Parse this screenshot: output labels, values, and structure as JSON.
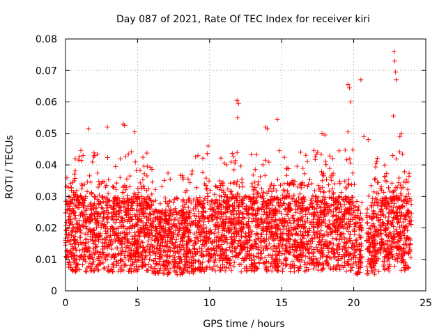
{
  "chart_data": {
    "type": "scatter",
    "title": "Day 087 of 2021, Rate Of TEC Index for receiver kiri",
    "xlabel": "GPS time / hours",
    "ylabel": "ROTI / TECUs",
    "xlim": [
      0,
      25
    ],
    "ylim": [
      0,
      0.08
    ],
    "xticks": [
      0,
      5,
      10,
      15,
      20,
      25
    ],
    "yticks": [
      0,
      0.01,
      0.02,
      0.03,
      0.04,
      0.05,
      0.06,
      0.07,
      0.08
    ],
    "xtick_labels": [
      "0",
      "5",
      "10",
      "15",
      "20",
      "25"
    ],
    "ytick_labels": [
      "0",
      "0.01",
      "0.02",
      "0.03",
      "0.04",
      "0.05",
      "0.06",
      "0.07",
      "0.08"
    ],
    "grid": true,
    "marker": "+",
    "marker_color": "#ff0000",
    "x_data_range": [
      0,
      24
    ],
    "gap_hours": [
      20.6,
      20.9
    ],
    "series": [
      {
        "name": "ROTI",
        "color": "#ff0000",
        "outliers": [
          {
            "x": 22.8,
            "y": 0.076
          },
          {
            "x": 22.85,
            "y": 0.073
          },
          {
            "x": 22.9,
            "y": 0.0695
          },
          {
            "x": 22.95,
            "y": 0.067
          },
          {
            "x": 19.6,
            "y": 0.0655
          },
          {
            "x": 19.7,
            "y": 0.0645
          },
          {
            "x": 20.5,
            "y": 0.067
          },
          {
            "x": 19.8,
            "y": 0.06
          },
          {
            "x": 11.9,
            "y": 0.0605
          },
          {
            "x": 12.0,
            "y": 0.0595
          },
          {
            "x": 11.95,
            "y": 0.055
          },
          {
            "x": 22.75,
            "y": 0.0555
          },
          {
            "x": 14.7,
            "y": 0.0545
          },
          {
            "x": 13.9,
            "y": 0.052
          },
          {
            "x": 14.0,
            "y": 0.0515
          },
          {
            "x": 4.0,
            "y": 0.053
          },
          {
            "x": 4.1,
            "y": 0.0525
          },
          {
            "x": 2.9,
            "y": 0.052
          },
          {
            "x": 1.6,
            "y": 0.0515
          },
          {
            "x": 4.8,
            "y": 0.0505
          },
          {
            "x": 9.9,
            "y": 0.046
          },
          {
            "x": 23.3,
            "y": 0.05
          },
          {
            "x": 23.2,
            "y": 0.049
          },
          {
            "x": 19.6,
            "y": 0.0505
          },
          {
            "x": 17.8,
            "y": 0.05
          },
          {
            "x": 18.0,
            "y": 0.0495
          },
          {
            "x": 20.7,
            "y": 0.049
          },
          {
            "x": 21.0,
            "y": 0.048
          }
        ]
      }
    ]
  }
}
